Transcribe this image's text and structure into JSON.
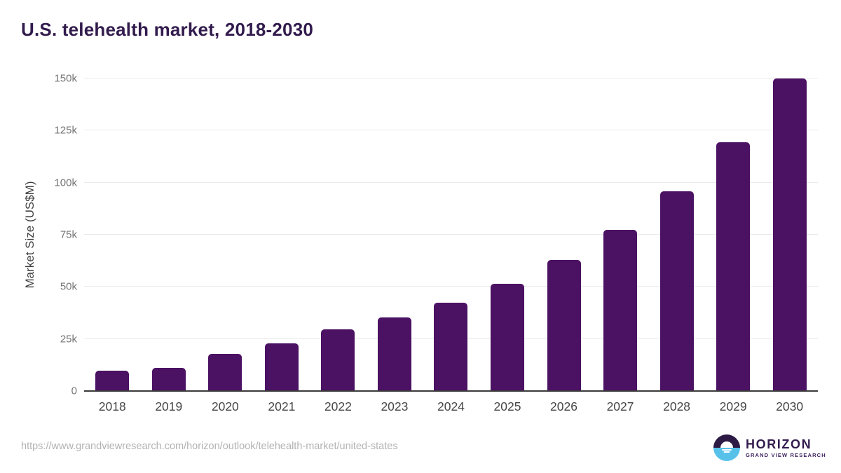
{
  "title": "U.S. telehealth market, 2018-2030",
  "footer": {
    "source_url": "https://www.grandviewresearch.com/horizon/outlook/telehealth-market/united-states",
    "logo": {
      "name": "HORIZON",
      "subtitle": "GRAND VIEW RESEARCH"
    }
  },
  "colors": {
    "bar": "#4b1163",
    "title": "#321b4d",
    "grid": "#eaeaea",
    "axis_line": "#3b3b3b",
    "y_tick_text": "#757575",
    "x_tick_text": "#464646",
    "url_text": "#b2b2b2",
    "logo_purple": "#2d1a45",
    "logo_blue": "#57c1ea"
  },
  "chart_data": {
    "type": "bar",
    "title": "U.S. telehealth market, 2018-2030",
    "xlabel": "",
    "ylabel": "Market Size (US$M)",
    "categories": [
      "2018",
      "2019",
      "2020",
      "2021",
      "2022",
      "2023",
      "2024",
      "2025",
      "2026",
      "2027",
      "2028",
      "2029",
      "2030"
    ],
    "values": [
      9700,
      11200,
      17700,
      22900,
      29600,
      35400,
      42500,
      51300,
      62900,
      77400,
      95700,
      119300,
      150000
    ],
    "ylim": [
      0,
      150000
    ],
    "yticks": [
      {
        "value": 0,
        "label": "0"
      },
      {
        "value": 25000,
        "label": "25k"
      },
      {
        "value": 50000,
        "label": "50k"
      },
      {
        "value": 75000,
        "label": "75k"
      },
      {
        "value": 100000,
        "label": "100k"
      },
      {
        "value": 125000,
        "label": "125k"
      },
      {
        "value": 150000,
        "label": "150k"
      }
    ],
    "grid": "horizontal",
    "legend": "none"
  }
}
